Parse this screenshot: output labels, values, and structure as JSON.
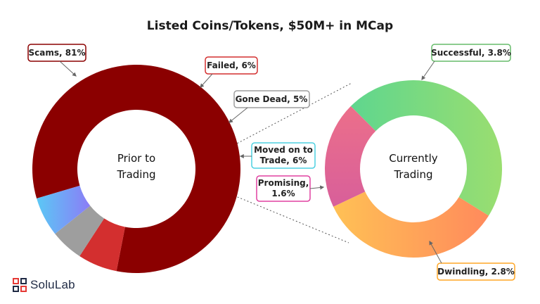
{
  "chart_data": {
    "type": "donut",
    "title": "Listed Coins/Tokens, $50M+ in MCap",
    "charts": [
      {
        "center_label": [
          "Prior to",
          "Trading"
        ],
        "slices": [
          {
            "label": "Scams, 81%",
            "value": 81,
            "color": "#8b0000",
            "border": "#8b0000"
          },
          {
            "label": "Failed, 6%",
            "value": 6,
            "color": "#d32f2f",
            "border": "#d32f2f"
          },
          {
            "label": "Gone Dead, 5%",
            "value": 5,
            "color": "#9e9e9e",
            "border": "#9e9e9e"
          },
          {
            "label": "Moved on to Trade, 6%",
            "value": 6,
            "color": "#5bc8f5",
            "color2": "#8b7cf6",
            "border": "#4dd0e1"
          }
        ]
      },
      {
        "center_label": [
          "Currently",
          "Trading"
        ],
        "slices": [
          {
            "label": "Successful, 3.8%",
            "value": 3.8,
            "color": "#5fd68e",
            "color2": "#9ade70",
            "border": "#66bb6a"
          },
          {
            "label": "Dwindling, 2.8%",
            "value": 2.8,
            "color": "#ffc155",
            "color2": "#ff8a5c",
            "border": "#ffa726"
          },
          {
            "label": "Promising, 1.6%",
            "value": 1.6,
            "color": "#ec6f8a",
            "color2": "#d85f9a",
            "border": "#e040a0"
          }
        ]
      }
    ]
  },
  "logo": {
    "text": "SoluLab",
    "color": "#1f2a44",
    "accent": "#e53935"
  }
}
